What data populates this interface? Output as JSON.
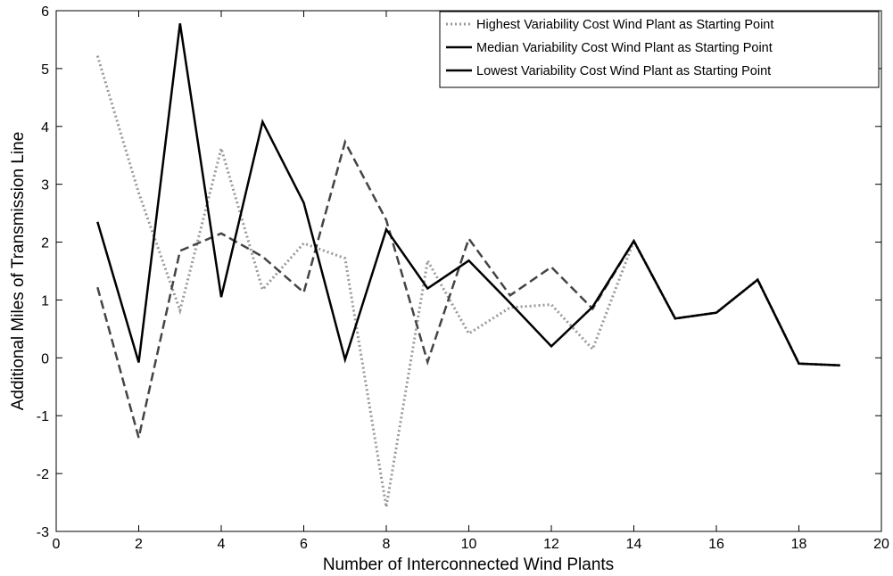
{
  "chart_data": {
    "type": "line",
    "title": "",
    "xlabel": "Number of Interconnected Wind Plants",
    "ylabel": "Additional Miles of Transmission Line",
    "xlim": [
      0,
      20
    ],
    "ylim": [
      -3,
      6
    ],
    "xticks": [
      0,
      2,
      4,
      6,
      8,
      10,
      12,
      14,
      16,
      18,
      20
    ],
    "yticks": [
      -3,
      -2,
      -1,
      0,
      1,
      2,
      3,
      4,
      5,
      6
    ],
    "grid": false,
    "legend_position": "top-right",
    "legend": [
      {
        "label": "Highest Variability Cost Wind Plant as Starting Point",
        "style": "dotted",
        "color": "#999999"
      },
      {
        "label": "Median Variability Cost Wind Plant as Starting Point",
        "style": "solid",
        "color": "#000000"
      },
      {
        "label": "Lowest Variability Cost Wind Plant as Starting Point",
        "style": "solid",
        "color": "#000000"
      }
    ],
    "series": [
      {
        "style": "dotted",
        "color": "#999999",
        "x": [
          1,
          2,
          3,
          4,
          5,
          6,
          7,
          8,
          9,
          10,
          11,
          12,
          13,
          14,
          15,
          16,
          17,
          18,
          19
        ],
        "y": [
          5.22,
          2.85,
          0.82,
          3.62,
          1.18,
          1.98,
          1.72,
          -2.58,
          1.68,
          0.42,
          0.87,
          0.92,
          0.15,
          2.02,
          0.68,
          0.78,
          1.35,
          -0.1,
          -0.13
        ]
      },
      {
        "style": "dashed",
        "color": "#444444",
        "x": [
          1,
          2,
          3,
          4,
          5,
          6,
          7,
          8,
          9,
          10,
          11,
          12,
          13,
          14,
          15,
          16,
          17,
          18,
          19
        ],
        "y": [
          1.22,
          -1.38,
          1.85,
          2.15,
          1.75,
          1.13,
          3.73,
          2.38,
          -0.07,
          2.06,
          1.08,
          1.57,
          0.85,
          2.02,
          0.68,
          0.78,
          1.35,
          -0.1,
          -0.13
        ]
      },
      {
        "style": "solid",
        "color": "#000000",
        "x": [
          1,
          2,
          3,
          4,
          5,
          6,
          7,
          8,
          9,
          10,
          11,
          12,
          13,
          14,
          15,
          16,
          17,
          18,
          19
        ],
        "y": [
          2.35,
          -0.08,
          5.78,
          1.05,
          4.08,
          2.68,
          -0.03,
          2.22,
          1.2,
          1.68,
          0.95,
          0.2,
          0.88,
          2.02,
          0.68,
          0.78,
          1.35,
          -0.1,
          -0.13
        ]
      }
    ]
  }
}
